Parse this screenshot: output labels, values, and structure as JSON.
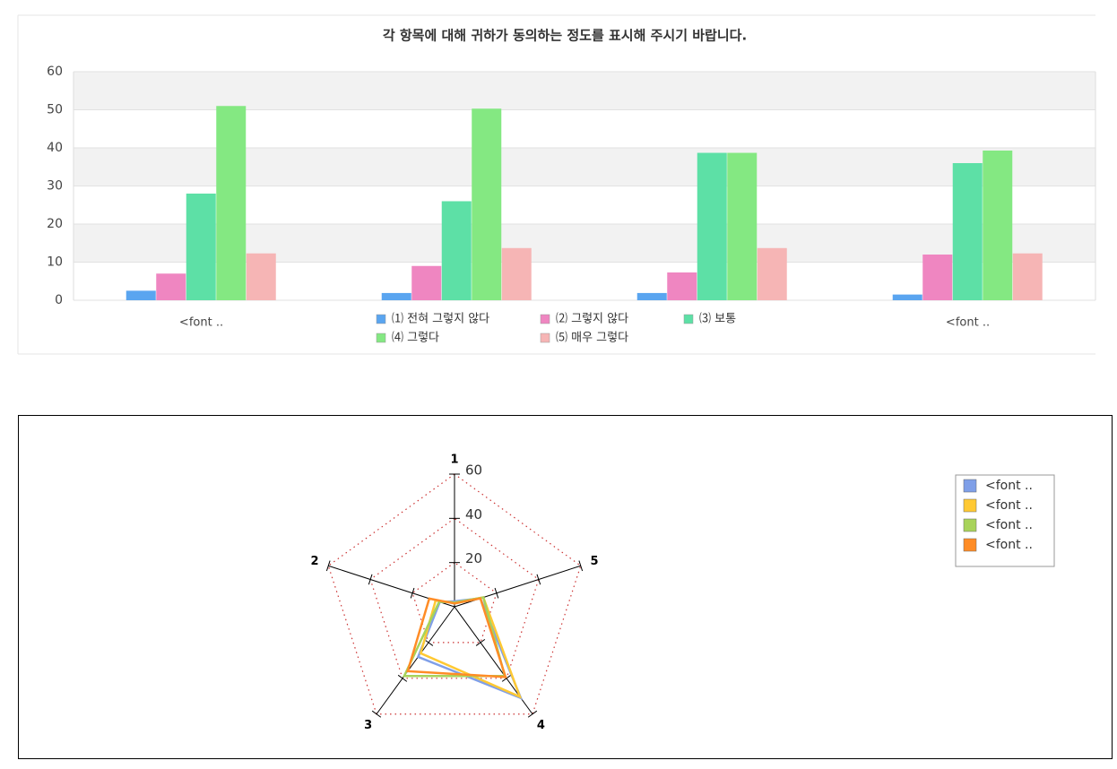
{
  "chart_data": [
    {
      "type": "bar",
      "title": "각 항목에 대해 귀하가 동의하는 정도를 표시해 주시기 바랍니다.",
      "categories": [
        "<font ..",
        null,
        null,
        "<font .."
      ],
      "series": [
        {
          "name": "⑴ 전혀 그렇지 않다",
          "color": "#5aa5f0",
          "values": [
            2.5,
            1.9,
            1.9,
            1.5
          ]
        },
        {
          "name": "⑵ 그렇지 않다",
          "color": "#ef86c1",
          "values": [
            7,
            9,
            7.3,
            12
          ]
        },
        {
          "name": "⑶ 보통",
          "color": "#5de0a6",
          "values": [
            28,
            26,
            38.7,
            36
          ]
        },
        {
          "name": "⑷ 그렇다",
          "color": "#84e882",
          "values": [
            51,
            50.3,
            38.7,
            39.3
          ]
        },
        {
          "name": "⑸ 매우 그렇다",
          "color": "#f6b5b5",
          "values": [
            12.3,
            13.7,
            13.7,
            12.3
          ]
        }
      ],
      "ylim": [
        0,
        60
      ],
      "yticks": [
        0,
        10,
        20,
        30,
        40,
        50,
        60
      ],
      "grid": true,
      "legend": "bottom"
    },
    {
      "type": "radar",
      "axes": [
        "1",
        "2",
        "3",
        "4",
        "5"
      ],
      "rlim": [
        0,
        60
      ],
      "rticks": [
        20,
        40,
        60
      ],
      "grid": true,
      "legend": "top-right",
      "series": [
        {
          "name": "<font ..",
          "color": "#7f9fe8",
          "values": [
            2.5,
            7,
            28,
            51,
            12.3
          ]
        },
        {
          "name": "<font ..",
          "color": "#ffc933",
          "values": [
            1.9,
            9,
            26,
            50.3,
            13.7
          ]
        },
        {
          "name": "<font ..",
          "color": "#a8d35a",
          "values": [
            1.9,
            7.3,
            38.7,
            38.7,
            13.7
          ]
        },
        {
          "name": "<font ..",
          "color": "#ff8c26",
          "values": [
            1.5,
            12,
            36,
            39.3,
            12.3
          ]
        }
      ]
    }
  ]
}
